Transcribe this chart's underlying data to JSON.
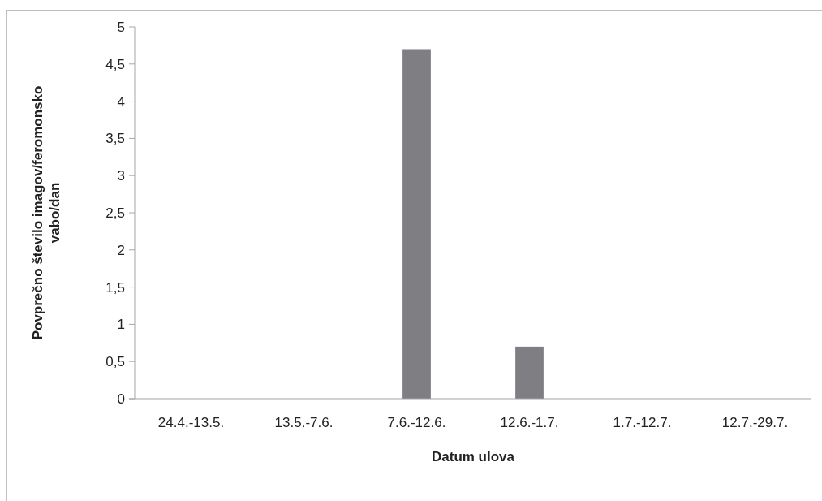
{
  "chart_data": {
    "type": "bar",
    "xlabel": "Datum ulova",
    "ylabel": "Povprečno število imagov/feromonsko vabo/dan",
    "categories": [
      "24.4.-13.5.",
      "13.5.-7.6.",
      "7.6.-12.6.",
      "12.6.-1.7.",
      "1.7.-12.7.",
      "12.7.-29.7."
    ],
    "values": [
      0,
      0,
      4.7,
      0.7,
      0,
      0
    ],
    "color": "#7f7f83",
    "ylim": [
      0,
      5
    ],
    "yticks": [
      0,
      {
        "value": 0.5,
        "label": "0,5"
      },
      1,
      {
        "value": 1.5,
        "label": "1,5"
      },
      2,
      {
        "value": 2.5,
        "label": "2,5"
      },
      3,
      {
        "value": 3.5,
        "label": "3,5"
      },
      4,
      {
        "value": 4.5,
        "label": "4,5"
      },
      5
    ],
    "grid": false
  }
}
